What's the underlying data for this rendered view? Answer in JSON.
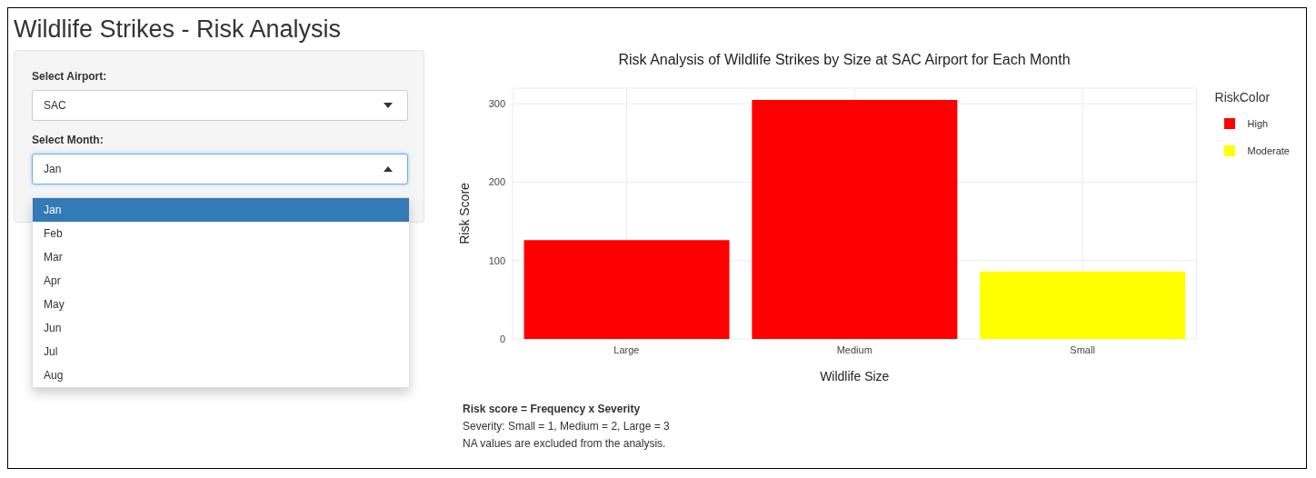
{
  "chart_data": {
    "type": "bar",
    "title": "Wildlife Strikes - Risk Analysis",
    "subtitle": "Risk Analysis of Wildlife Strikes by Size at SAC Airport for Each Month",
    "xlabel": "Wildlife Size",
    "ylabel": "Risk Score",
    "legend_title": "RiskColor",
    "categories": [
      "Large",
      "Medium",
      "Small"
    ],
    "series": [
      {
        "name": "High",
        "color": "#ff0000",
        "values": [
          126,
          305,
          null
        ]
      },
      {
        "name": "Moderate",
        "color": "#ffff00",
        "values": [
          null,
          null,
          86
        ]
      }
    ],
    "stacked": true,
    "ylim": [
      0,
      320
    ],
    "yticks": [
      0,
      100,
      200,
      300
    ],
    "grid": true,
    "legend": "top right",
    "annotations": [
      "Select Airport:",
      "SAC",
      "Select Month:",
      "Jan",
      "Jan",
      "Feb",
      "Mar",
      "Apr",
      "May",
      "Jun",
      "Jul",
      "Aug",
      "Risk score = Frequency x Severity",
      "Severity: Small = 1, Medium = 2, Large = 3",
      "NA values are excluded from the analysis."
    ]
  }
}
